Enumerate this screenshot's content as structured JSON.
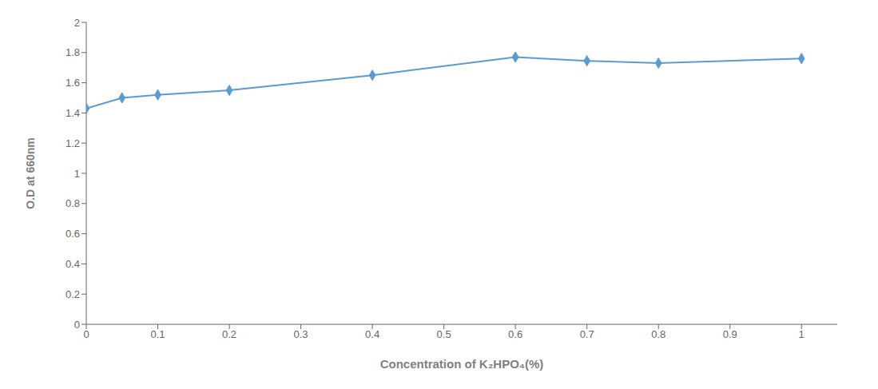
{
  "chart_data": {
    "type": "line",
    "xlabel": "Concentration of K₂HPO₄(%)",
    "ylabel": "O.D at 660nm",
    "x": [
      0,
      0.05,
      0.1,
      0.2,
      0.4,
      0.6,
      0.7,
      0.8,
      1.0
    ],
    "values": [
      1.43,
      1.5,
      1.52,
      1.55,
      1.65,
      1.77,
      1.745,
      1.73,
      1.76
    ],
    "color": "#5B9BD5",
    "marker": "diamond",
    "xlim": [
      0,
      1.05
    ],
    "ylim": [
      0,
      2
    ],
    "xticks": [
      0,
      0.1,
      0.2,
      0.3,
      0.4,
      0.5,
      0.6,
      0.7,
      0.8,
      0.9,
      1
    ],
    "yticks": [
      0,
      0.2,
      0.4,
      0.6,
      0.8,
      1,
      1.2,
      1.4,
      1.6,
      1.8,
      2
    ],
    "grid": false
  }
}
